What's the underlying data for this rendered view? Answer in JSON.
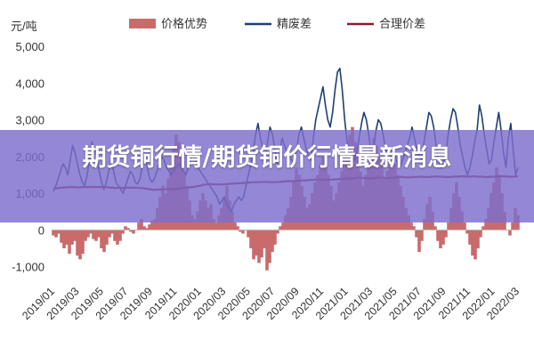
{
  "overlay_title": "期货铜行情/期货铜价行情最新消息",
  "chart_data": {
    "type": "line",
    "ylabel": "元/吨",
    "ylim": [
      -1300,
      5000
    ],
    "yticks": [
      -1000,
      0,
      1000,
      2000,
      3000,
      4000,
      5000
    ],
    "ytick_labels": [
      "-1,000",
      "0",
      "1,000",
      "2,000",
      "3,000",
      "4,000",
      "5,000"
    ],
    "xtick_labels": [
      "2019/01",
      "2019/03",
      "2019/05",
      "2019/07",
      "2019/09",
      "2019/11",
      "2020/01",
      "2020/03",
      "2020/05",
      "2020/07",
      "2020/09",
      "2020/11",
      "2021/01",
      "2021/03",
      "2021/05",
      "2021/07",
      "2021/09",
      "2021/11",
      "2022/01",
      "2022/03"
    ],
    "legend_position": "top",
    "grid": false,
    "series": [
      {
        "name": "价格优势",
        "kind": "area",
        "color": "#c96b6b",
        "values": [
          -150,
          -200,
          -100,
          -350,
          -500,
          -400,
          -650,
          -400,
          -300,
          -700,
          -800,
          -650,
          -300,
          -200,
          -100,
          -250,
          -300,
          -200,
          -500,
          -600,
          -400,
          -200,
          -100,
          -300,
          -400,
          -300,
          -100,
          100,
          50,
          -50,
          -100,
          0,
          200,
          300,
          100,
          50,
          150,
          250,
          300,
          600,
          900,
          1200,
          1000,
          1400,
          1800,
          2200,
          2600,
          2400,
          2000,
          1600,
          1200,
          800,
          400,
          300,
          500,
          800,
          1000,
          800,
          600,
          700,
          300,
          200,
          400,
          600,
          900,
          1200,
          800,
          500,
          200,
          100,
          -50,
          -100,
          0,
          -200,
          -500,
          -800,
          -700,
          -900,
          -750,
          -500,
          -1100,
          -900,
          -600,
          -400,
          -100,
          100,
          200,
          400,
          600,
          900,
          1300,
          1700,
          1500,
          1200,
          900,
          600,
          700,
          1000,
          1300,
          1500,
          1800,
          2000,
          1800,
          1500,
          1200,
          800,
          1000,
          1300,
          1600,
          2000,
          2300,
          2600,
          2800,
          2400,
          2000,
          1600,
          1200,
          1500,
          1800,
          2200,
          2500,
          2300,
          2000,
          1800,
          1400,
          1600,
          1900,
          2100,
          1800,
          1500,
          1200,
          900,
          600,
          400,
          200,
          100,
          -200,
          -600,
          -300,
          300,
          700,
          900,
          500,
          100,
          -300,
          -500,
          -400,
          -200,
          200,
          600,
          1000,
          1300,
          900,
          500,
          200,
          -100,
          -400,
          -700,
          -800,
          -500,
          -200,
          100,
          300,
          600,
          1000,
          1300,
          1700,
          1500,
          1000,
          500,
          0,
          -150,
          200,
          600,
          400
        ]
      },
      {
        "name": "精废差",
        "kind": "line",
        "color": "#1e3f73",
        "values": [
          1050,
          1200,
          1400,
          1600,
          1800,
          1700,
          1500,
          1900,
          2300,
          2100,
          1800,
          1500,
          1300,
          1200,
          1500,
          1900,
          2400,
          2200,
          2000,
          1600,
          1300,
          1100,
          1300,
          1600,
          1900,
          1600,
          1300,
          1200,
          1100,
          1000,
          1200,
          1400,
          1600,
          1500,
          1300,
          1250,
          1400,
          1800,
          1900,
          1700,
          1400,
          1300,
          1400,
          1600,
          1800,
          2000,
          1900,
          1700,
          1600,
          1500,
          1600,
          1700,
          1800,
          1700,
          1600,
          1500,
          1700,
          1900,
          2100,
          1900,
          1700,
          1600,
          1500,
          1400,
          1300,
          1200,
          1100,
          1000,
          900,
          700,
          800,
          900,
          700,
          600,
          500,
          700,
          800,
          900,
          800,
          900,
          1200,
          1500,
          1800,
          2100,
          2600,
          2900,
          2500,
          2200,
          2000,
          2400,
          2800,
          2600,
          2200,
          1800,
          2100,
          2500,
          2300,
          2100,
          2000,
          1900,
          1800,
          2200,
          2600,
          2800,
          2500,
          2200,
          2000,
          1900,
          2500,
          3000,
          3300,
          3600,
          3900,
          3400,
          3000,
          2800,
          3200,
          3800,
          4300,
          4400,
          3800,
          3000,
          2400,
          2200,
          2000,
          1900,
          2100,
          2500,
          2900,
          3200,
          3000,
          2600,
          2100,
          2200,
          2700,
          3000,
          2900,
          2600,
          2200,
          1900,
          2000,
          2200,
          2000,
          1800,
          1700,
          1900,
          2100,
          2300,
          2500,
          2800,
          2500,
          2200,
          2000,
          1900,
          2400,
          2800,
          3200,
          3100,
          2800,
          2300,
          1900,
          1700,
          1800,
          2100,
          2600,
          3000,
          3300,
          3200,
          2800,
          2300,
          2000,
          1700,
          1500,
          1700,
          2000,
          2400,
          2700,
          3400,
          3100,
          2600,
          2200,
          1800,
          1900,
          2400,
          2800,
          3200,
          2700,
          2100,
          1700,
          2500,
          2900,
          2200,
          1500,
          1700
        ]
      },
      {
        "name": "合理价差",
        "kind": "line",
        "color": "#8b1a2a",
        "values": [
          1120,
          1130,
          1140,
          1150,
          1150,
          1160,
          1160,
          1170,
          1170,
          1160,
          1160,
          1160,
          1170,
          1170,
          1170,
          1170,
          1170,
          1170,
          1170,
          1170,
          1170,
          1170,
          1170,
          1160,
          1150,
          1150,
          1140,
          1150,
          1150,
          1140,
          1150,
          1150,
          1150,
          1150,
          1150,
          1150,
          1140,
          1140,
          1130,
          1120,
          1110,
          1100,
          1090,
          1100,
          1100,
          1100,
          1110,
          1110,
          1110,
          1120,
          1110,
          1110,
          1120,
          1130,
          1140,
          1150,
          1150,
          1160,
          1170,
          1180,
          1190,
          1200,
          1220,
          1230,
          1240,
          1250,
          1250,
          1240,
          1240,
          1240,
          1240,
          1240,
          1250,
          1250,
          1260,
          1260,
          1260,
          1270,
          1270,
          1280,
          1280,
          1290,
          1290,
          1300,
          1300,
          1300,
          1300,
          1310,
          1310,
          1310,
          1300,
          1300,
          1300,
          1300,
          1310,
          1310,
          1320,
          1320,
          1330,
          1330,
          1330,
          1330,
          1340,
          1340,
          1350,
          1350,
          1350,
          1360,
          1360,
          1370,
          1370,
          1370,
          1370,
          1360,
          1360,
          1360,
          1370,
          1370,
          1380,
          1380,
          1390,
          1390,
          1400,
          1400,
          1400,
          1400,
          1410,
          1420,
          1420,
          1420,
          1410,
          1410,
          1400,
          1400,
          1410,
          1420,
          1430,
          1420,
          1420,
          1410,
          1410,
          1420,
          1420,
          1430,
          1430,
          1440,
          1440,
          1430,
          1430,
          1430,
          1440,
          1440,
          1440,
          1450,
          1450,
          1440,
          1440,
          1440,
          1450,
          1450,
          1460,
          1450,
          1450,
          1440,
          1440,
          1440,
          1440,
          1450,
          1450,
          1450,
          1460,
          1460,
          1460,
          1450,
          1450,
          1460,
          1460,
          1450,
          1450,
          1450,
          1440,
          1440,
          1440,
          1450,
          1450,
          1450,
          1460,
          1460,
          1460,
          1460,
          1450,
          1450,
          1450,
          1460,
          1460
        ]
      }
    ]
  }
}
